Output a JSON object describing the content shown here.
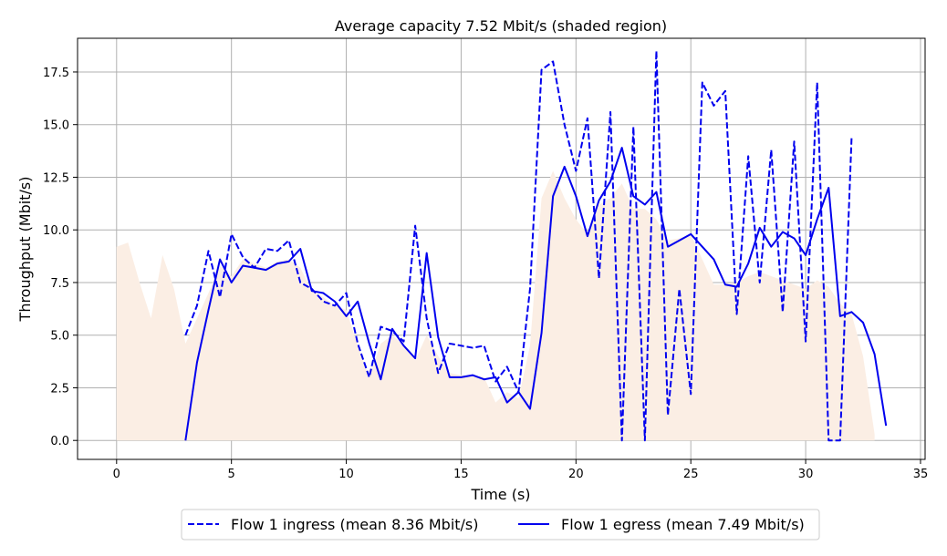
{
  "chart_data": {
    "type": "line",
    "title": "Average capacity 7.52 Mbit/s (shaded region)",
    "xlabel": "Time (s)",
    "ylabel": "Throughput (Mbit/s)",
    "xlim": [
      -1.7,
      35.2
    ],
    "ylim": [
      -0.9,
      19.1
    ],
    "xticks": [
      0,
      5,
      10,
      15,
      20,
      25,
      30,
      35
    ],
    "xtick_labels": [
      "0",
      "5",
      "10",
      "15",
      "20",
      "25",
      "30",
      "35"
    ],
    "yticks": [
      0.0,
      2.5,
      5.0,
      7.5,
      10.0,
      12.5,
      15.0,
      17.5
    ],
    "ytick_labels": [
      "0.0",
      "2.5",
      "5.0",
      "7.5",
      "10.0",
      "12.5",
      "15.0",
      "17.5"
    ],
    "grid": true,
    "legend_position": "bottom-center",
    "colors": {
      "series": "#0000ee",
      "capacity": "#fbeee4"
    },
    "capacity": {
      "x": [
        0,
        0.5,
        1,
        1.5,
        2,
        2.5,
        3,
        3.5,
        4,
        4.5,
        5,
        5.5,
        6,
        6.5,
        7,
        7.5,
        8,
        8.5,
        9,
        9.5,
        10,
        10.5,
        11,
        11.5,
        12,
        12.5,
        13,
        13.5,
        14,
        14.5,
        15,
        15.5,
        16,
        16.5,
        17,
        17.5,
        18,
        18.5,
        19,
        19.5,
        20,
        20.5,
        21,
        21.5,
        22,
        22.5,
        23,
        23.5,
        24,
        24.5,
        25,
        25.5,
        26,
        26.5,
        27,
        27.5,
        28,
        28.5,
        29,
        29.5,
        30,
        30.5,
        31,
        31.5,
        32,
        32.5,
        33
      ],
      "y": [
        9.2,
        9.4,
        7.5,
        5.8,
        8.8,
        7.2,
        4.6,
        5.8,
        7.0,
        8.3,
        7.8,
        8.6,
        8.4,
        8.2,
        8.5,
        8.6,
        8.2,
        7.1,
        6.8,
        6.4,
        6.2,
        4.5,
        3.0,
        4.6,
        5.0,
        4.5,
        3.8,
        5.0,
        4.0,
        3.2,
        3.1,
        3.1,
        3.0,
        1.8,
        2.3,
        2.0,
        4.5,
        11.5,
        12.8,
        11.5,
        10.5,
        9.8,
        11.2,
        11.5,
        12.2,
        11.0,
        11.0,
        10.5,
        9.5,
        9.6,
        9.8,
        8.6,
        7.4,
        7.4,
        7.5,
        7.8,
        8.0,
        7.8,
        7.6,
        7.4,
        7.2,
        7.6,
        7.3,
        6.5,
        6.0,
        4.0,
        0.3
      ]
    },
    "series": [
      {
        "name": "Flow 1 ingress (mean 8.36 Mbit/s)",
        "style": "dashed",
        "x": [
          3,
          3.5,
          4,
          4.5,
          5,
          5.5,
          6,
          6.5,
          7,
          7.5,
          8,
          8.5,
          9,
          9.5,
          10,
          10.5,
          11,
          11.5,
          12,
          12.5,
          13,
          13.5,
          14,
          14.5,
          15,
          15.5,
          16,
          16.5,
          17,
          17.5,
          18,
          18.5,
          19,
          19.5,
          20,
          20.5,
          21,
          21.5,
          22,
          22.5,
          23,
          23.5,
          24,
          24.5,
          25,
          25.5,
          26,
          26.5,
          27,
          27.5,
          28,
          28.5,
          29,
          29.5,
          30,
          30.5,
          31,
          31.5,
          32
        ],
        "y": [
          5.0,
          6.4,
          9.0,
          6.8,
          9.8,
          8.7,
          8.2,
          9.1,
          9.0,
          9.5,
          7.5,
          7.2,
          6.6,
          6.4,
          7.0,
          4.6,
          3.0,
          5.4,
          5.2,
          4.7,
          10.2,
          5.8,
          3.2,
          4.6,
          4.5,
          4.4,
          4.5,
          2.8,
          3.5,
          2.3,
          7.2,
          17.6,
          18.0,
          15.0,
          12.8,
          15.3,
          7.7,
          15.6,
          0.0,
          14.9,
          0.0,
          18.5,
          1.2,
          7.2,
          2.2,
          17.0,
          15.9,
          16.6,
          6.0,
          13.5,
          7.5,
          13.8,
          6.1,
          14.2,
          4.7,
          17.0,
          0.0,
          0.0,
          14.4
        ]
      },
      {
        "name": "Flow 1 egress (mean 7.49 Mbit/s)",
        "style": "solid",
        "x": [
          3,
          3.5,
          4,
          4.5,
          5,
          5.5,
          6,
          6.5,
          7,
          7.5,
          8,
          8.5,
          9,
          9.5,
          10,
          10.5,
          11,
          11.5,
          12,
          12.5,
          13,
          13.5,
          14,
          14.5,
          15,
          15.5,
          16,
          16.5,
          17,
          17.5,
          18,
          18.5,
          19,
          19.5,
          20,
          20.5,
          21,
          21.5,
          22,
          22.5,
          23,
          23.5,
          24,
          25,
          26,
          26.5,
          27,
          27.5,
          28,
          28.5,
          29,
          29.5,
          30,
          30.5,
          31,
          31.5,
          32,
          32.5,
          33,
          33.5
        ],
        "y": [
          0.0,
          3.7,
          6.2,
          8.6,
          7.5,
          8.3,
          8.2,
          8.1,
          8.4,
          8.5,
          9.1,
          7.1,
          7.0,
          6.6,
          5.9,
          6.6,
          4.6,
          2.9,
          5.3,
          4.5,
          3.9,
          8.9,
          4.9,
          3.0,
          3.0,
          3.1,
          2.9,
          3.0,
          1.8,
          2.3,
          1.5,
          5.1,
          11.6,
          13.0,
          11.6,
          9.7,
          11.4,
          12.3,
          13.9,
          11.6,
          11.2,
          11.8,
          9.2,
          9.8,
          8.6,
          7.4,
          7.3,
          8.4,
          10.1,
          9.2,
          9.9,
          9.6,
          8.8,
          10.5,
          12.0,
          5.9,
          6.1,
          5.6,
          4.1,
          0.7
        ]
      }
    ]
  }
}
